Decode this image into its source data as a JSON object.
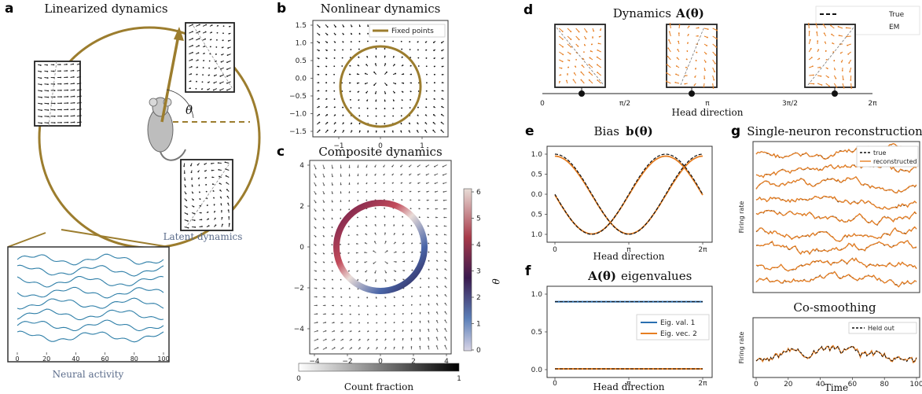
{
  "panels": {
    "a": {
      "label": "a",
      "title": "Linearized dynamics",
      "theta": "θ",
      "latent_label": "Latent dynamics",
      "neural_label": "Neural activity",
      "neural_ticks": [
        "0",
        "20",
        "40",
        "60",
        "80",
        "100"
      ]
    },
    "b": {
      "label": "b",
      "title": "Nonlinear dynamics",
      "legend": "Fixed points",
      "yticks": [
        "1.5",
        "1.0",
        "0.5",
        "0.0",
        "−0.5",
        "−1.0",
        "−1.5"
      ],
      "xticks": [
        "−1",
        "0",
        "1"
      ]
    },
    "c": {
      "label": "c",
      "title": "Composite dynamics",
      "yticks": [
        "4",
        "2",
        "0",
        "−2",
        "−4"
      ],
      "xticks": [
        "−4",
        "−2",
        "0",
        "2",
        "4"
      ],
      "colorbar_ticks": [
        "6",
        "5",
        "4",
        "3",
        "2",
        "1",
        "0"
      ],
      "colorbar_label": "θ",
      "count_label": "Count fraction",
      "count_ticks": [
        "0",
        "1"
      ]
    },
    "d": {
      "label": "d",
      "title": "Dynamics",
      "title_math": "A(θ)",
      "legend": [
        "True",
        "EM"
      ],
      "xlabel": "Head direction",
      "ticks": [
        "0",
        "π/2",
        "π",
        "3π/2",
        "2π"
      ]
    },
    "e": {
      "label": "e",
      "title": "Bias",
      "title_math": "b(θ)",
      "yticks": [
        "1.0",
        "0.5",
        "0.0",
        "0.5",
        "1.0"
      ],
      "xticks": [
        "0",
        "π",
        "2π"
      ],
      "xlabel": "Head direction"
    },
    "f": {
      "label": "f",
      "title_math": "A(θ)",
      "title": "eigenvalues",
      "yticks": [
        "1.0",
        "0.5",
        "0.0"
      ],
      "xticks": [
        "0",
        "π",
        "2π"
      ],
      "xlabel": "Head direction",
      "legend": [
        "Eig. val. 1",
        "Eig. vec. 2"
      ]
    },
    "g": {
      "label": "g",
      "title": "Single-neuron reconstruction",
      "ylabel": "Firing rate",
      "legend": [
        "true",
        "reconstructed"
      ],
      "title2": "Co-smoothing",
      "ylabel2": "Firing rate",
      "legend2": "Held out",
      "xticks": [
        "0",
        "20",
        "40",
        "60",
        "80",
        "100"
      ],
      "xlabel": "Time"
    }
  },
  "colors": {
    "gold": "#9c7d2e",
    "orange": "#e67e22",
    "blue": "#2a6fb0",
    "neural": "#2f7fa8",
    "latent_text": "#5a6b8a"
  },
  "chart_data": [
    {
      "type": "line",
      "panel": "e",
      "x": [
        0,
        0.785,
        1.571,
        2.356,
        3.142,
        3.927,
        4.712,
        5.498,
        6.283
      ],
      "ylim": [
        -1,
        1
      ],
      "series": [
        {
          "values": [
            1.0,
            0.71,
            0.0,
            -0.71,
            -1.0,
            -0.71,
            0.0,
            0.71,
            1.0
          ]
        },
        {
          "values": [
            0.0,
            -0.71,
            -1.0,
            -0.71,
            0.0,
            0.71,
            1.0,
            0.71,
            0.0
          ]
        }
      ]
    },
    {
      "type": "line",
      "panel": "f",
      "x": [
        0,
        3.142,
        6.283
      ],
      "ylim": [
        0,
        1.0
      ],
      "series": [
        {
          "name": "Eig. val. 1",
          "values": [
            0.9,
            0.9,
            0.9
          ]
        },
        {
          "name": "Eig. vec. 2",
          "values": [
            0.01,
            0.01,
            0.01
          ]
        }
      ]
    }
  ]
}
